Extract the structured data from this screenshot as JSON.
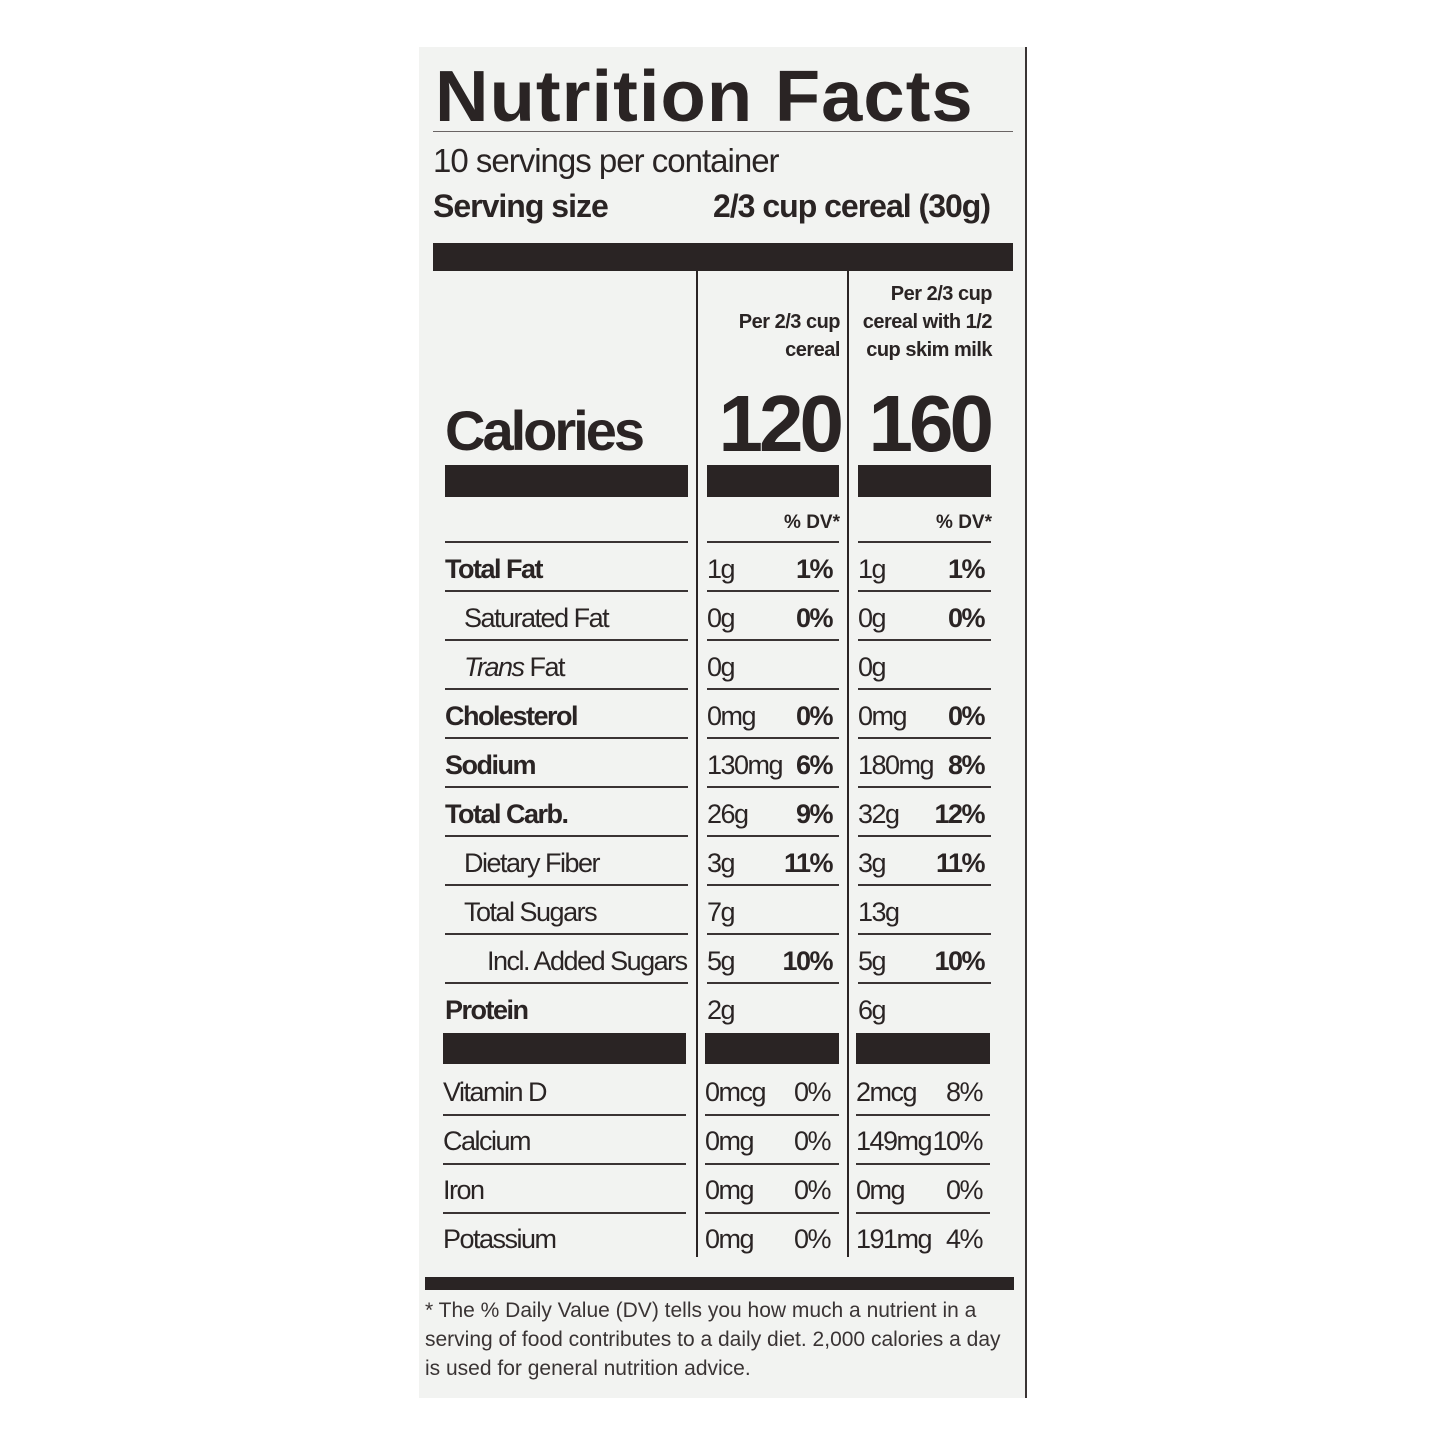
{
  "title": "Nutrition Facts",
  "servings_per_container": "10 servings per container",
  "serving_size": {
    "label": "Serving size",
    "value": "2/3 cup cereal (30g)"
  },
  "columns": [
    {
      "header_lines": [
        "Per 2/3 cup",
        "cereal"
      ],
      "calories": "120",
      "dv_label": "% DV*"
    },
    {
      "header_lines": [
        "Per 2/3 cup",
        "cereal with 1/2",
        "cup skim milk"
      ],
      "calories": "160",
      "dv_label": "% DV*"
    }
  ],
  "calories_label": "Calories",
  "nutrients": [
    {
      "label": "Total Fat",
      "bold": true,
      "indent": 0,
      "values": [
        [
          "1g",
          "1%"
        ],
        [
          "1g",
          "1%"
        ]
      ]
    },
    {
      "label": "Saturated Fat",
      "bold": false,
      "indent": 1,
      "values": [
        [
          "0g",
          "0%"
        ],
        [
          "0g",
          "0%"
        ]
      ]
    },
    {
      "label_italic": "Trans",
      "label": " Fat",
      "bold": false,
      "indent": 1,
      "values": [
        [
          "0g",
          ""
        ],
        [
          "0g",
          ""
        ]
      ]
    },
    {
      "label": "Cholesterol",
      "bold": true,
      "indent": 0,
      "values": [
        [
          "0mg",
          "0%"
        ],
        [
          "0mg",
          "0%"
        ]
      ]
    },
    {
      "label": "Sodium",
      "bold": true,
      "indent": 0,
      "values": [
        [
          "130mg",
          "6%"
        ],
        [
          "180mg",
          "8%"
        ]
      ]
    },
    {
      "label": "Total Carb.",
      "bold": true,
      "indent": 0,
      "values": [
        [
          "26g",
          "9%"
        ],
        [
          "32g",
          "12%"
        ]
      ]
    },
    {
      "label": "Dietary Fiber",
      "bold": false,
      "indent": 1,
      "values": [
        [
          "3g",
          "11%"
        ],
        [
          "3g",
          "11%"
        ]
      ]
    },
    {
      "label": "Total Sugars",
      "bold": false,
      "indent": 1,
      "values": [
        [
          "7g",
          ""
        ],
        [
          "13g",
          ""
        ]
      ]
    },
    {
      "label": "Incl. Added Sugars",
      "bold": false,
      "indent": 2,
      "values": [
        [
          "5g",
          "10%"
        ],
        [
          "5g",
          "10%"
        ]
      ]
    },
    {
      "label": "Protein",
      "bold": true,
      "indent": 0,
      "values": [
        [
          "2g",
          ""
        ],
        [
          "6g",
          ""
        ]
      ]
    }
  ],
  "vitamins": [
    {
      "label": "Vitamin D",
      "values": [
        [
          "0mcg",
          "0%"
        ],
        [
          "2mcg",
          "8%"
        ]
      ]
    },
    {
      "label": "Calcium",
      "values": [
        [
          "0mg",
          "0%"
        ],
        [
          "149mg",
          "10%"
        ]
      ]
    },
    {
      "label": "Iron",
      "values": [
        [
          "0mg",
          "0%"
        ],
        [
          "0mg",
          "0%"
        ]
      ]
    },
    {
      "label": "Potassium",
      "values": [
        [
          "0mg",
          "0%"
        ],
        [
          "191mg",
          "4%"
        ]
      ]
    }
  ],
  "footnote": "* The % Daily Value (DV) tells you how much a nutrient in a serving of food contributes to a daily diet. 2,000 calories a day is used for general nutrition advice.",
  "colors": {
    "background": "#f2f3f1",
    "ink": "#2a2424"
  }
}
